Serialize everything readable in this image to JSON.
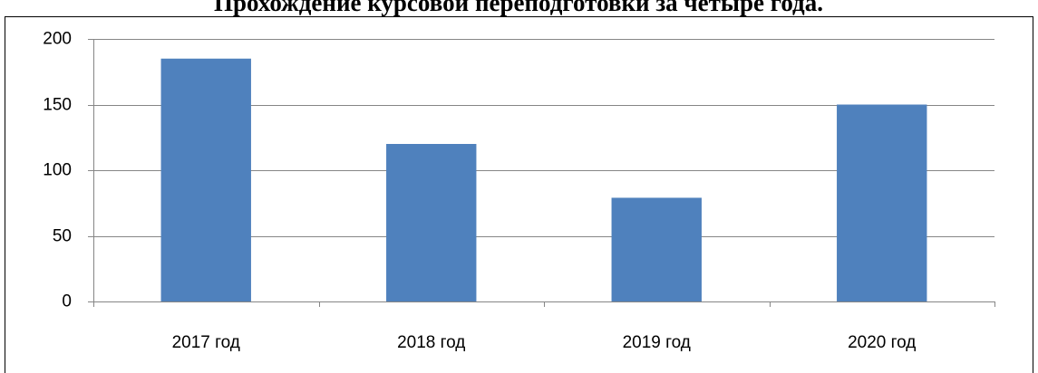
{
  "chart_data": {
    "type": "bar",
    "title": "Прохождение курсовой переподготовки за четыре года.",
    "categories": [
      "2017 год",
      "2018 год",
      "2019 год",
      "2020 год"
    ],
    "values": [
      185,
      120,
      79,
      150
    ],
    "color": "#4f81bd",
    "ylim": [
      0,
      200
    ],
    "yticks": [
      0,
      50,
      100,
      150,
      200
    ],
    "grid": true
  }
}
